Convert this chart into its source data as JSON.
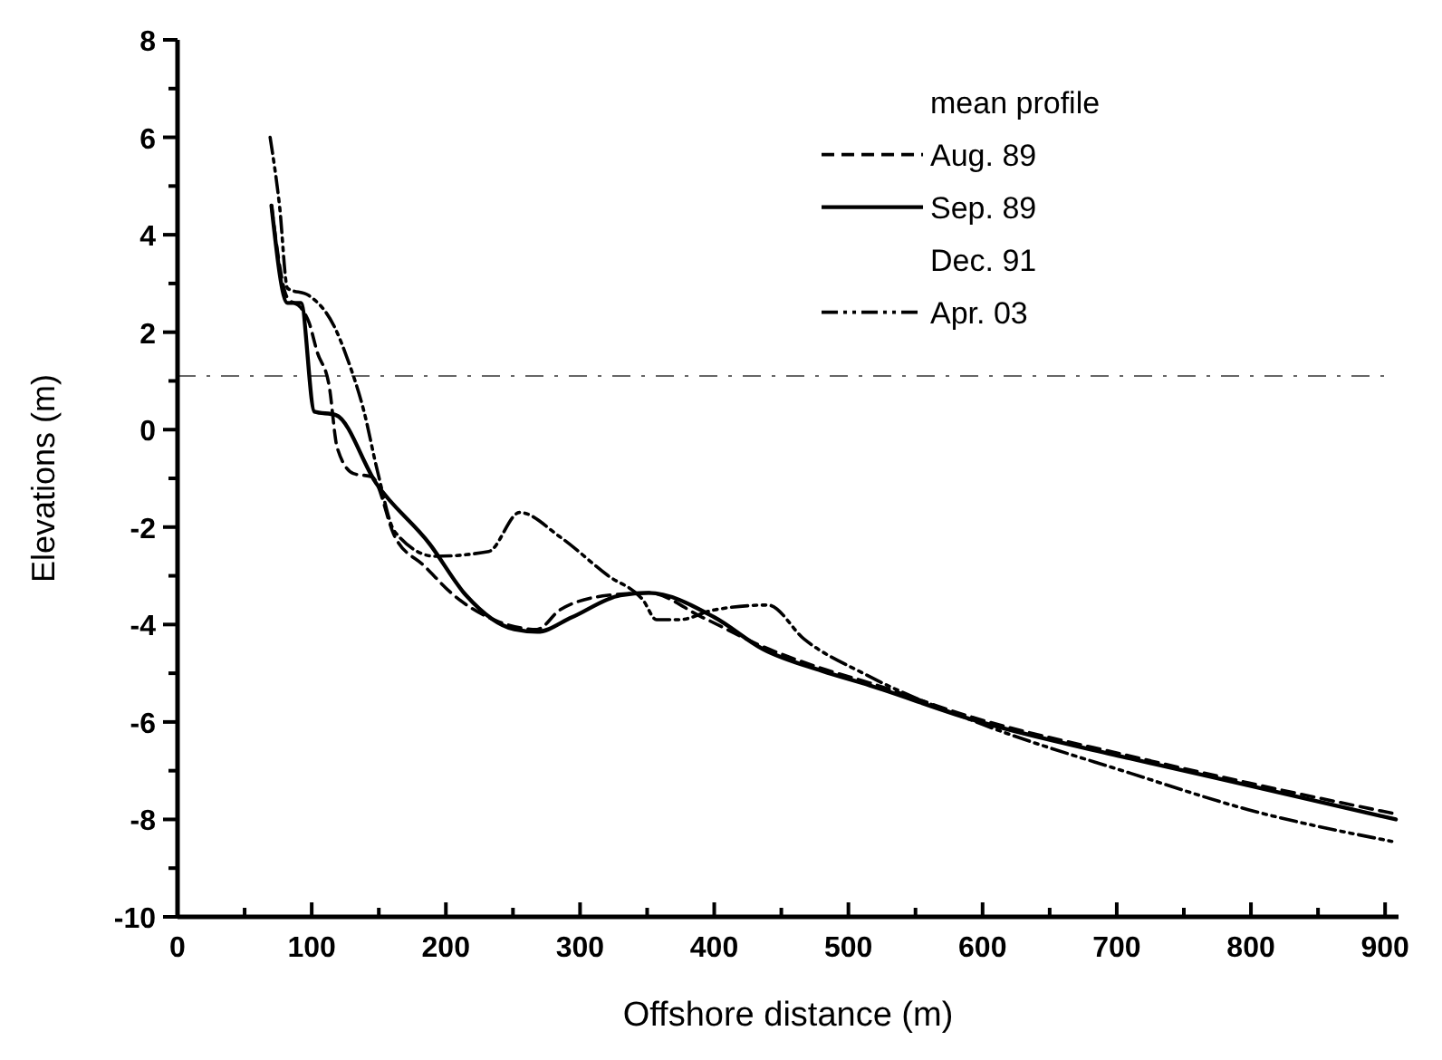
{
  "chart_data": {
    "type": "line",
    "xlabel": "Offshore distance (m)",
    "ylabel": "Elevations (m)",
    "legend_title": "mean profile",
    "legend": "right",
    "grid": false,
    "xlim": [
      0,
      910
    ],
    "ylim": [
      -10,
      8
    ],
    "xticks": [
      0,
      {
        "value": 50,
        "label": null
      },
      100,
      {
        "value": 150,
        "label": null
      },
      200,
      {
        "value": 250,
        "label": null
      },
      300,
      {
        "value": 350,
        "label": null
      },
      400,
      {
        "value": 450,
        "label": null
      },
      500,
      {
        "value": 550,
        "label": null
      },
      600,
      {
        "value": 650,
        "label": null
      },
      700,
      {
        "value": 750,
        "label": null
      },
      800,
      {
        "value": 850,
        "label": null
      },
      900
    ],
    "yticks": [
      -10,
      {
        "value": -9,
        "label": null
      },
      -8,
      {
        "value": -7,
        "label": null
      },
      -6,
      {
        "value": -5,
        "label": null
      },
      -4,
      {
        "value": -3,
        "label": null
      },
      -2,
      {
        "value": -1,
        "label": null
      },
      0,
      {
        "value": 1,
        "label": null
      },
      2,
      {
        "value": 3,
        "label": null
      },
      4,
      {
        "value": 5,
        "label": null
      },
      6,
      {
        "value": 7,
        "label": null
      },
      8
    ],
    "ref_lines": [
      {
        "axis": "y",
        "value": 1.1,
        "color": "#666666",
        "line_style": "dashed"
      }
    ],
    "series": [
      {
        "name": "Aug. 89",
        "color": "#000000",
        "line_style": "dashed",
        "x": [
          70,
          82,
          92,
          98,
          104,
          113,
          119,
          131,
          145,
          162,
          184,
          206,
          240,
          268,
          285,
          321,
          351,
          391,
          436,
          480,
          516,
          592,
          710,
          798,
          910
        ],
        "values": [
          4.6,
          2.7,
          2.5,
          2.2,
          1.6,
          0.9,
          -0.37,
          -0.9,
          -0.97,
          -2.2,
          -2.8,
          -3.4,
          -3.95,
          -4.1,
          -3.7,
          -3.4,
          -3.35,
          -3.85,
          -4.45,
          -4.9,
          -5.2,
          -5.9,
          -6.7,
          -7.25,
          -7.9
        ]
      },
      {
        "name": "Sep. 89",
        "color": "#000000",
        "line_style": "solid",
        "x": [
          70,
          82,
          92,
          102,
          118,
          148,
          188,
          215,
          251,
          268,
          294,
          330,
          351,
          400,
          436,
          480,
          516,
          592,
          710,
          798,
          908
        ],
        "values": [
          4.6,
          2.6,
          2.6,
          0.37,
          0.3,
          -1.1,
          -2.35,
          -3.4,
          -4.1,
          -4.15,
          -3.85,
          -3.4,
          -3.35,
          -3.85,
          -4.5,
          -4.95,
          -5.25,
          -5.95,
          -6.75,
          -7.3,
          -8.0
        ]
      },
      {
        "name": "Dec. 91"
      },
      {
        "name": "Apr. 03",
        "color": "#000000",
        "line_style": "dotted",
        "x": [
          69,
          76,
          82,
          98,
          118,
          126,
          139,
          149,
          162,
          192,
          232,
          255,
          285,
          321,
          347,
          357,
          374,
          400,
          440,
          467,
          511,
          600,
          710,
          798,
          905
        ],
        "values": [
          6.0,
          4.6,
          2.9,
          2.75,
          2.05,
          1.5,
          0.37,
          -0.85,
          -2.1,
          -2.6,
          -2.5,
          -1.7,
          -2.2,
          -3.0,
          -3.5,
          -3.9,
          -3.9,
          -3.7,
          -3.6,
          -4.3,
          -5.0,
          -6.05,
          -7.05,
          -7.8,
          -8.45
        ]
      }
    ]
  }
}
